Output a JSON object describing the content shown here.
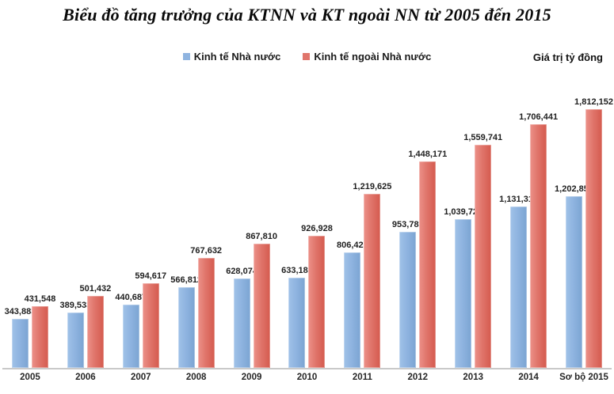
{
  "chart_data": {
    "type": "bar",
    "title": "Biểu đồ tăng trưởng của KTNN và KT ngoài NN từ 2005 đến 2015",
    "unit_label": "Giá trị tỷ đồng",
    "categories": [
      "2005",
      "2006",
      "2007",
      "2008",
      "2009",
      "2010",
      "2011",
      "2012",
      "2013",
      "2014",
      "Sơ bộ 2015"
    ],
    "series": [
      {
        "name": "Kinh tế Nhà nước",
        "color": "#8FB4E0",
        "values": [
          343883,
          389533,
          440687,
          566812,
          628074,
          633187,
          806425,
          953789,
          1039725,
          1131319,
          1202850
        ]
      },
      {
        "name": "Kinh tế ngoài Nhà nước",
        "color": "#E0756B",
        "values": [
          431548,
          501432,
          594617,
          767632,
          867810,
          926928,
          1219625,
          1448171,
          1559741,
          1706441,
          1812152
        ]
      }
    ],
    "ylim": [
      0,
      2000000
    ],
    "grid": false,
    "legend_position": "top",
    "data_labels": true,
    "axis_line_color": "#C9C9C9"
  }
}
